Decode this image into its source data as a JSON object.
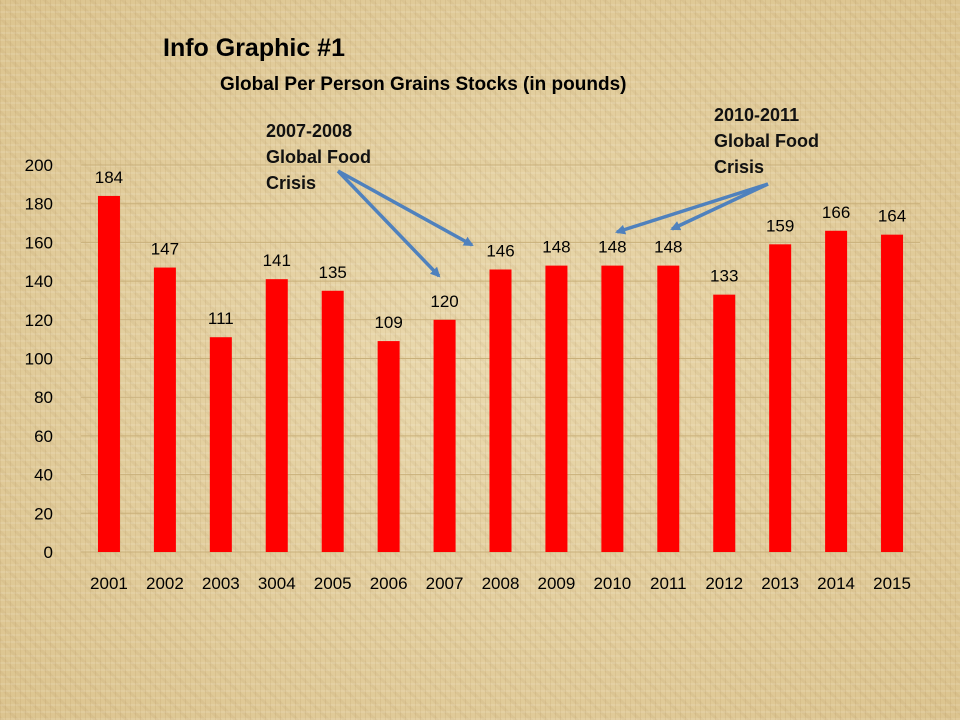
{
  "slide": {
    "heading": "Info Graphic #1",
    "annotations": [
      {
        "text": "2007-2008\nGlobal Food\nCrisis"
      },
      {
        "text": "2010-2011\nGlobal Food\nCrisis"
      }
    ]
  },
  "chart_data": {
    "type": "bar",
    "title": "Global Per Person Grains Stocks (in pounds)",
    "xlabel": "",
    "ylabel": "",
    "categories": [
      "2001",
      "2002",
      "2003",
      "3004",
      "2005",
      "2006",
      "2007",
      "2008",
      "2009",
      "2010",
      "2011",
      "2012",
      "2013",
      "2014",
      "2015"
    ],
    "values": [
      184,
      147,
      111,
      141,
      135,
      109,
      120,
      146,
      148,
      148,
      148,
      133,
      159,
      166,
      164
    ],
    "ylim": [
      0,
      200
    ],
    "yticks": [
      0,
      20,
      40,
      60,
      80,
      100,
      120,
      140,
      160,
      180,
      200
    ],
    "grid": true,
    "legend": "none",
    "bar_color": "#ff0000",
    "gridline_color": "#c9b07a",
    "arrow_color": "#4f81bd"
  }
}
